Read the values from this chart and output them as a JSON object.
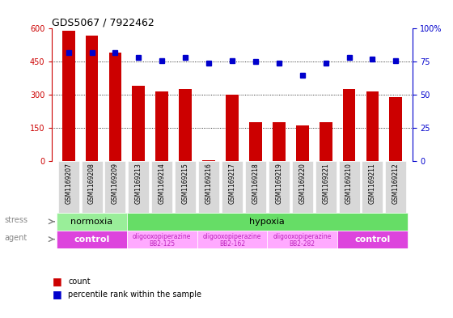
{
  "title": "GDS5067 / 7922462",
  "samples": [
    "GSM1169207",
    "GSM1169208",
    "GSM1169209",
    "GSM1169213",
    "GSM1169214",
    "GSM1169215",
    "GSM1169216",
    "GSM1169217",
    "GSM1169218",
    "GSM1169219",
    "GSM1169220",
    "GSM1169221",
    "GSM1169210",
    "GSM1169211",
    "GSM1169212"
  ],
  "counts": [
    590,
    570,
    490,
    340,
    315,
    325,
    5,
    300,
    175,
    175,
    160,
    175,
    325,
    315,
    290
  ],
  "percentiles": [
    82,
    82,
    82,
    78,
    76,
    78,
    74,
    76,
    75,
    74,
    65,
    74,
    78,
    77,
    76
  ],
  "ylim_left": [
    0,
    600
  ],
  "ylim_right": [
    0,
    100
  ],
  "yticks_left": [
    0,
    150,
    300,
    450,
    600
  ],
  "yticks_right": [
    0,
    25,
    50,
    75,
    100
  ],
  "bar_color": "#cc0000",
  "dot_color": "#0000cc",
  "stress_groups": [
    {
      "label": "normoxia",
      "start": 0,
      "end": 3,
      "color": "#99ee99"
    },
    {
      "label": "hypoxia",
      "start": 3,
      "end": 15,
      "color": "#66dd66"
    }
  ],
  "agent_groups": [
    {
      "label": "control",
      "start": 0,
      "end": 3,
      "color": "#dd44dd",
      "text_color": "#ffffff"
    },
    {
      "label": "oligooxopiperazine\nBB2-125",
      "start": 3,
      "end": 6,
      "color": "#ffaaff",
      "text_color": "#bb22bb"
    },
    {
      "label": "oligooxopiperazine\nBB2-162",
      "start": 6,
      "end": 9,
      "color": "#ffaaff",
      "text_color": "#bb22bb"
    },
    {
      "label": "oligooxopiperazine\nBB2-282",
      "start": 9,
      "end": 12,
      "color": "#ffaaff",
      "text_color": "#bb22bb"
    },
    {
      "label": "control",
      "start": 12,
      "end": 15,
      "color": "#dd44dd",
      "text_color": "#ffffff"
    }
  ],
  "stress_label": "stress",
  "agent_label": "agent",
  "legend_count_label": "count",
  "legend_pct_label": "percentile rank within the sample",
  "bg_color": "#ffffff",
  "plot_bg_color": "#ffffff",
  "xticklabel_bg": "#d8d8d8"
}
